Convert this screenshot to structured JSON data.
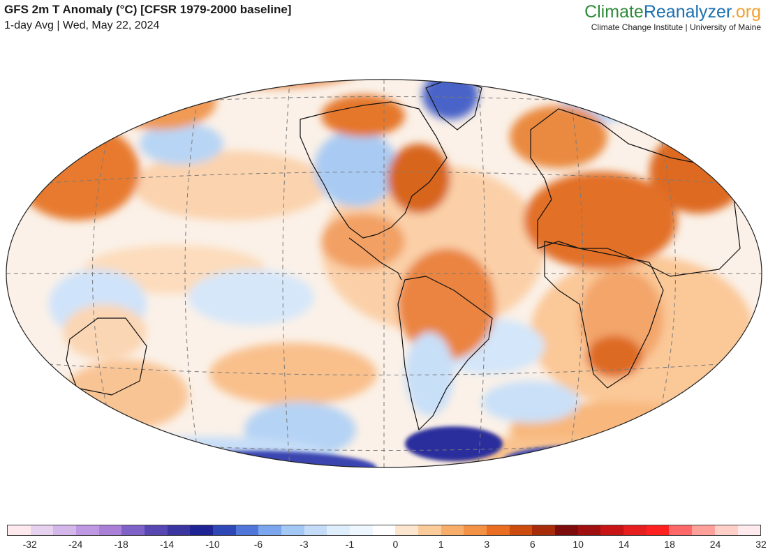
{
  "title": "GFS 2m T Anomaly (°C) [CFSR 1979-2000 baseline]",
  "subtitle": "1-day Avg | Wed, May 22, 2024",
  "brand": {
    "logo_part1": "Climate",
    "logo_part2": "Reanalyzer",
    "logo_part3": ".org",
    "institution": "Climate Change Institute | University of Maine",
    "colors": {
      "climate": "#2e8b3a",
      "reanalyzer": "#1a6fb0",
      "org": "#f0a030"
    }
  },
  "colorbar": {
    "colors": [
      "#fde9ee",
      "#e6d2ef",
      "#d3b6ea",
      "#bf98e3",
      "#a97fd8",
      "#7e62c8",
      "#5846b2",
      "#3a35a0",
      "#1f2494",
      "#2f48b8",
      "#4f76d8",
      "#7ba6ee",
      "#a3c8f6",
      "#c4dcf8",
      "#dfeefd",
      "#eef6ff",
      "#ffffff",
      "#fde6cf",
      "#fbcb9a",
      "#f8ad6a",
      "#f39145",
      "#ea6e22",
      "#cc4c10",
      "#a82c0a",
      "#7d0d0d",
      "#a00f0f",
      "#c81414",
      "#e61e1e",
      "#ff2020",
      "#ff6868",
      "#ffa09a",
      "#ffcfc8",
      "#ffebee"
    ],
    "tick_labels": [
      "-32",
      "-24",
      "-18",
      "-14",
      "-10",
      "-6",
      "-3",
      "-1",
      "0",
      "1",
      "3",
      "6",
      "10",
      "14",
      "18",
      "24",
      "32"
    ]
  },
  "map": {
    "projection": "Winkel-Tripel",
    "field_colors": {
      "ocean": "#f9f3ee",
      "warm": "#f4a263",
      "hot": "#dd5f18",
      "cool": "#b7d6f6",
      "cold": "#3340b0"
    }
  }
}
